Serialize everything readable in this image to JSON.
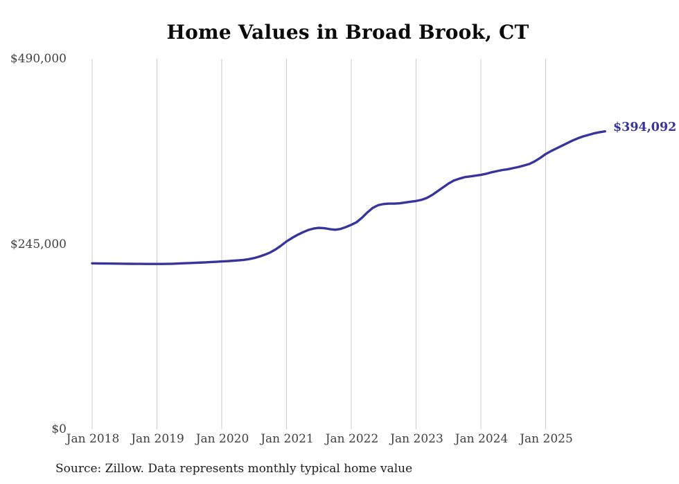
{
  "title": "Home Values in Broad Brook, CT",
  "source_note": "Source: Zillow. Data represents monthly typical home value",
  "end_label": "$394,092",
  "colors": {
    "line": "#37349b",
    "grid": "#cccccc",
    "axis_text": "#404040",
    "title_text": "#0a0a0a",
    "end_label_text": "#37349b"
  },
  "chart_data": {
    "type": "line",
    "title": "Home Values in Broad Brook, CT",
    "xlabel": "",
    "ylabel": "",
    "ylim": [
      0,
      490000
    ],
    "y_ticks": [
      0,
      245000,
      490000
    ],
    "y_tick_labels": [
      "$0",
      "$245,000",
      "$490,000"
    ],
    "x_tick_labels": [
      "Jan 2018",
      "Jan 2019",
      "Jan 2020",
      "Jan 2021",
      "Jan 2022",
      "Jan 2023",
      "Jan 2024",
      "Jan 2025"
    ],
    "x_range": [
      "Jan 2018",
      "Dec 2025"
    ],
    "frequency": "monthly",
    "grid": "vertical-yearly-only",
    "legend": "none",
    "end_value": 394092,
    "series": [
      {
        "name": "Typical home value",
        "values": [
          219500,
          219400,
          219300,
          219300,
          219200,
          219100,
          219000,
          218900,
          218800,
          218800,
          218700,
          218700,
          218700,
          218700,
          218800,
          219000,
          219300,
          219600,
          219900,
          220200,
          220500,
          220800,
          221200,
          221600,
          222000,
          222400,
          222900,
          223400,
          224000,
          225000,
          226500,
          228500,
          231000,
          234000,
          238000,
          243000,
          248500,
          253000,
          257000,
          260500,
          263500,
          265500,
          266500,
          266000,
          264800,
          264000,
          265000,
          267500,
          270500,
          274000,
          280000,
          287000,
          293000,
          296500,
          298000,
          298500,
          298500,
          299000,
          300000,
          301000,
          302000,
          303500,
          306000,
          310000,
          315000,
          320000,
          325000,
          329000,
          331500,
          333500,
          334500,
          335500,
          336500,
          338000,
          340000,
          341500,
          343000,
          344000,
          345500,
          347000,
          349000,
          351000,
          354500,
          359000,
          364000,
          368000,
          371500,
          375000,
          378500,
          382000,
          385000,
          387500,
          389500,
          391500,
          393000,
          394092
        ]
      }
    ]
  }
}
